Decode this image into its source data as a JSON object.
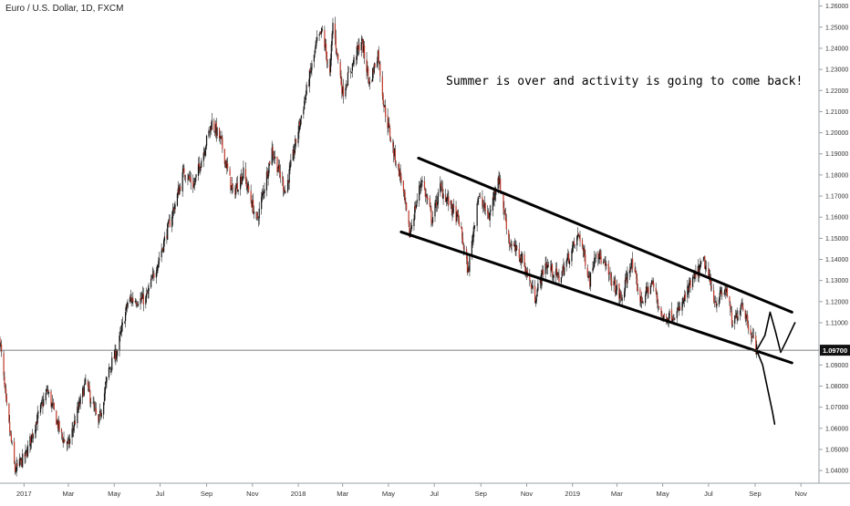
{
  "chart_data": {
    "type": "candlestick",
    "title": "Euro / U.S. Dollar, 1D, FXCM",
    "annotation": "Summer is over and activity is going to come back!",
    "current_price": 1.097,
    "current_price_label": "1.09700",
    "ylim": [
      1.034,
      1.262
    ],
    "y_ticks": [
      1.26,
      1.25,
      1.24,
      1.23,
      1.22,
      1.21,
      1.2,
      1.19,
      1.18,
      1.17,
      1.16,
      1.15,
      1.14,
      1.13,
      1.12,
      1.11,
      1.09,
      1.08,
      1.07,
      1.06,
      1.05,
      1.04
    ],
    "y_tick_labels": [
      "1.26000",
      "1.25000",
      "1.24000",
      "1.23000",
      "1.22000",
      "1.21000",
      "1.20000",
      "1.19000",
      "1.18000",
      "1.17000",
      "1.16000",
      "1.15000",
      "1.14000",
      "1.13000",
      "1.12000",
      "1.11000",
      "1.09000",
      "1.08000",
      "1.07000",
      "1.06000",
      "1.05000",
      "1.04000"
    ],
    "xlim": [
      "2016-11-30",
      "2019-11-25"
    ],
    "x_ticks": [
      {
        "date": "2017-01-01",
        "label": "2017"
      },
      {
        "date": "2017-03-01",
        "label": "Mar"
      },
      {
        "date": "2017-05-01",
        "label": "May"
      },
      {
        "date": "2017-07-01",
        "label": "Jul"
      },
      {
        "date": "2017-09-01",
        "label": "Sep"
      },
      {
        "date": "2017-11-01",
        "label": "Nov"
      },
      {
        "date": "2018-01-01",
        "label": "2018"
      },
      {
        "date": "2018-03-01",
        "label": "Mar"
      },
      {
        "date": "2018-05-01",
        "label": "May"
      },
      {
        "date": "2018-07-01",
        "label": "Jul"
      },
      {
        "date": "2018-09-01",
        "label": "Sep"
      },
      {
        "date": "2018-11-01",
        "label": "Nov"
      },
      {
        "date": "2019-01-01",
        "label": "2019"
      },
      {
        "date": "2019-03-01",
        "label": "Mar"
      },
      {
        "date": "2019-05-01",
        "label": "May"
      },
      {
        "date": "2019-07-01",
        "label": "Jul"
      },
      {
        "date": "2019-09-01",
        "label": "Sep"
      },
      {
        "date": "2019-11-01",
        "label": "Nov"
      }
    ],
    "price_path": [
      [
        "2016-11-30",
        1.102
      ],
      [
        "2016-12-08",
        1.072
      ],
      [
        "2016-12-20",
        1.04
      ],
      [
        "2017-01-03",
        1.047
      ],
      [
        "2017-01-16",
        1.062
      ],
      [
        "2017-02-01",
        1.078
      ],
      [
        "2017-02-20",
        1.056
      ],
      [
        "2017-03-01",
        1.052
      ],
      [
        "2017-03-24",
        1.082
      ],
      [
        "2017-04-10",
        1.062
      ],
      [
        "2017-04-24",
        1.088
      ],
      [
        "2017-05-05",
        1.097
      ],
      [
        "2017-05-20",
        1.121
      ],
      [
        "2017-06-12",
        1.121
      ],
      [
        "2017-07-01",
        1.142
      ],
      [
        "2017-07-20",
        1.165
      ],
      [
        "2017-08-02",
        1.182
      ],
      [
        "2017-08-15",
        1.175
      ],
      [
        "2017-09-08",
        1.205
      ],
      [
        "2017-09-20",
        1.196
      ],
      [
        "2017-10-06",
        1.171
      ],
      [
        "2017-10-20",
        1.181
      ],
      [
        "2017-11-07",
        1.158
      ],
      [
        "2017-11-27",
        1.192
      ],
      [
        "2017-12-15",
        1.172
      ],
      [
        "2018-01-02",
        1.203
      ],
      [
        "2018-01-12",
        1.22
      ],
      [
        "2018-01-26",
        1.243
      ],
      [
        "2018-02-02",
        1.248
      ],
      [
        "2018-02-12",
        1.227
      ],
      [
        "2018-02-16",
        1.252
      ],
      [
        "2018-03-01",
        1.219
      ],
      [
        "2018-03-26",
        1.244
      ],
      [
        "2018-04-06",
        1.223
      ],
      [
        "2018-04-17",
        1.238
      ],
      [
        "2018-04-25",
        1.213
      ],
      [
        "2018-05-07",
        1.192
      ],
      [
        "2018-05-18",
        1.178
      ],
      [
        "2018-05-29",
        1.152
      ],
      [
        "2018-06-14",
        1.178
      ],
      [
        "2018-06-28",
        1.159
      ],
      [
        "2018-07-09",
        1.174
      ],
      [
        "2018-07-20",
        1.167
      ],
      [
        "2018-08-03",
        1.158
      ],
      [
        "2018-08-15",
        1.134
      ],
      [
        "2018-08-28",
        1.17
      ],
      [
        "2018-09-12",
        1.16
      ],
      [
        "2018-09-24",
        1.18
      ],
      [
        "2018-10-09",
        1.148
      ],
      [
        "2018-10-26",
        1.14
      ],
      [
        "2018-11-12",
        1.122
      ],
      [
        "2018-11-26",
        1.138
      ],
      [
        "2018-12-14",
        1.131
      ],
      [
        "2019-01-10",
        1.152
      ],
      [
        "2019-01-24",
        1.13
      ],
      [
        "2019-02-01",
        1.145
      ],
      [
        "2019-02-18",
        1.133
      ],
      [
        "2019-03-07",
        1.121
      ],
      [
        "2019-03-20",
        1.139
      ],
      [
        "2019-04-02",
        1.12
      ],
      [
        "2019-04-17",
        1.129
      ],
      [
        "2019-05-01",
        1.112
      ],
      [
        "2019-05-22",
        1.115
      ],
      [
        "2019-06-07",
        1.128
      ],
      [
        "2019-06-25",
        1.139
      ],
      [
        "2019-07-10",
        1.12
      ],
      [
        "2019-07-25",
        1.126
      ],
      [
        "2019-08-02",
        1.108
      ],
      [
        "2019-08-14",
        1.12
      ],
      [
        "2019-08-26",
        1.106
      ],
      [
        "2019-09-03",
        1.097
      ]
    ],
    "channel_upper": [
      [
        "2018-06-10",
        1.188
      ],
      [
        "2019-10-20",
        1.115
      ]
    ],
    "channel_lower": [
      [
        "2018-05-18",
        1.153
      ],
      [
        "2019-10-20",
        1.091
      ]
    ],
    "projection_up": [
      [
        "2019-09-03",
        1.097
      ],
      [
        "2019-09-14",
        1.104
      ],
      [
        "2019-09-21",
        1.115
      ],
      [
        "2019-09-28",
        1.106
      ],
      [
        "2019-10-05",
        1.096
      ],
      [
        "2019-10-12",
        1.101
      ],
      [
        "2019-10-24",
        1.11
      ]
    ],
    "projection_down": [
      [
        "2019-09-03",
        1.097
      ],
      [
        "2019-09-11",
        1.09
      ],
      [
        "2019-09-18",
        1.078
      ],
      [
        "2019-09-24",
        1.068
      ],
      [
        "2019-09-27",
        1.062
      ]
    ]
  }
}
